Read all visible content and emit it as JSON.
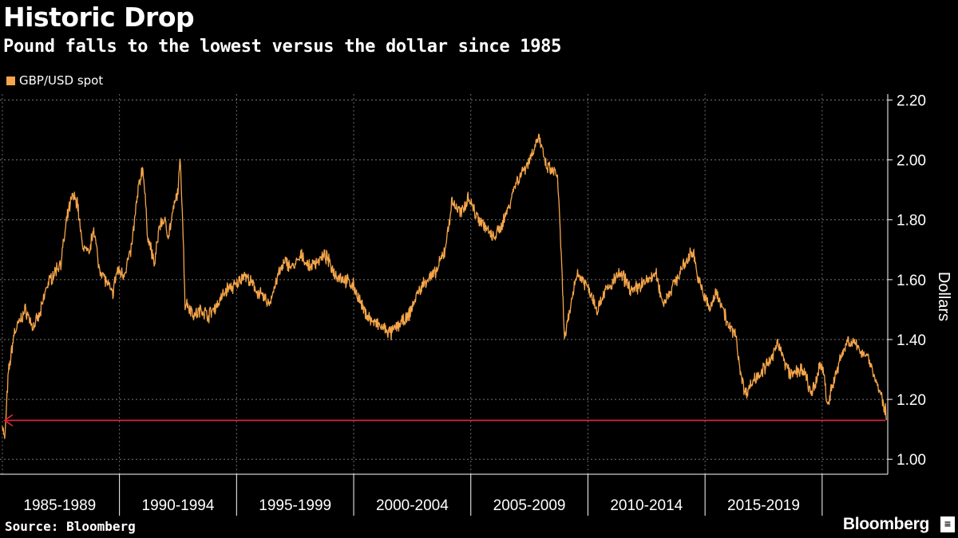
{
  "header": {
    "title": "Historic Drop",
    "subtitle": "Pound falls to the lowest versus the dollar since 1985"
  },
  "footer": {
    "source": "Source: Bloomberg",
    "brand": "Bloomberg"
  },
  "colors": {
    "background": "#000000",
    "series": "#f5a54a",
    "arrow": "#e8253a",
    "grid": "#777777"
  },
  "chart_data": {
    "type": "line",
    "title": "Historic Drop",
    "subtitle": "Pound falls to the lowest versus the dollar since 1985",
    "ylabel": "Dollars",
    "ylim": [
      0.95,
      2.22
    ],
    "yticks": [
      1.0,
      1.2,
      1.4,
      1.6,
      1.8,
      2.0,
      2.2
    ],
    "ytick_labels": [
      "1.00",
      "1.20",
      "1.40",
      "1.60",
      "1.80",
      "2.00",
      "2.20"
    ],
    "xlim": [
      1984.9,
      2022.8
    ],
    "x_categories": [
      "1985-1989",
      "1990-1994",
      "1995-1999",
      "2000-2004",
      "2005-2009",
      "2010-2014",
      "2015-2019"
    ],
    "x_boundaries": [
      1990,
      1995,
      2000,
      2005,
      2010,
      2015,
      2020
    ],
    "grid": true,
    "legend_position": "top-left",
    "series": [
      {
        "name": "GBP/USD spot",
        "x": [
          1985.0,
          1985.1,
          1985.25,
          1985.5,
          1985.8,
          1986.0,
          1986.3,
          1986.6,
          1986.9,
          1987.2,
          1987.5,
          1987.8,
          1988.0,
          1988.2,
          1988.4,
          1988.7,
          1988.9,
          1989.1,
          1989.4,
          1989.7,
          1989.9,
          1990.2,
          1990.5,
          1990.8,
          1991.0,
          1991.2,
          1991.5,
          1991.7,
          1991.9,
          1992.1,
          1992.3,
          1992.5,
          1992.6,
          1992.7,
          1992.8,
          1992.9,
          1993.2,
          1993.5,
          1993.8,
          1994.2,
          1994.6,
          1995.0,
          1995.3,
          1995.7,
          1996.0,
          1996.4,
          1996.8,
          1997.1,
          1997.4,
          1997.8,
          1998.1,
          1998.4,
          1998.8,
          1999.2,
          1999.6,
          2000.0,
          2000.4,
          2000.8,
          2001.2,
          2001.6,
          2001.9,
          2002.3,
          2002.7,
          2003.1,
          2003.5,
          2003.9,
          2004.2,
          2004.6,
          2004.9,
          2005.2,
          2005.6,
          2005.9,
          2006.2,
          2006.6,
          2006.9,
          2007.2,
          2007.5,
          2007.9,
          2008.2,
          2008.5,
          2008.7,
          2008.85,
          2009.0,
          2009.2,
          2009.5,
          2009.8,
          2010.1,
          2010.4,
          2010.7,
          2011.0,
          2011.3,
          2011.6,
          2011.9,
          2012.2,
          2012.6,
          2012.9,
          2013.2,
          2013.5,
          2013.9,
          2014.2,
          2014.5,
          2014.7,
          2014.9,
          2015.2,
          2015.5,
          2015.8,
          2016.0,
          2016.3,
          2016.5,
          2016.7,
          2016.9,
          2017.2,
          2017.5,
          2017.9,
          2018.1,
          2018.4,
          2018.7,
          2019.0,
          2019.3,
          2019.5,
          2019.7,
          2019.9,
          2020.1,
          2020.2,
          2020.5,
          2020.8,
          2021.1,
          2021.4,
          2021.7,
          2022.0,
          2022.2,
          2022.4,
          2022.55,
          2022.7,
          2022.74
        ],
        "values": [
          1.12,
          1.06,
          1.28,
          1.42,
          1.47,
          1.5,
          1.44,
          1.48,
          1.58,
          1.62,
          1.66,
          1.82,
          1.88,
          1.86,
          1.72,
          1.68,
          1.78,
          1.65,
          1.6,
          1.55,
          1.63,
          1.62,
          1.7,
          1.9,
          1.98,
          1.75,
          1.65,
          1.78,
          1.8,
          1.75,
          1.83,
          1.9,
          2.0,
          1.8,
          1.52,
          1.52,
          1.48,
          1.5,
          1.48,
          1.52,
          1.57,
          1.58,
          1.62,
          1.58,
          1.55,
          1.52,
          1.62,
          1.66,
          1.64,
          1.68,
          1.64,
          1.66,
          1.68,
          1.62,
          1.6,
          1.58,
          1.5,
          1.46,
          1.44,
          1.42,
          1.45,
          1.47,
          1.55,
          1.6,
          1.62,
          1.7,
          1.86,
          1.82,
          1.88,
          1.82,
          1.78,
          1.74,
          1.76,
          1.84,
          1.92,
          1.96,
          2.0,
          2.08,
          1.98,
          1.96,
          1.95,
          1.7,
          1.4,
          1.48,
          1.62,
          1.6,
          1.56,
          1.5,
          1.56,
          1.58,
          1.62,
          1.6,
          1.56,
          1.58,
          1.6,
          1.62,
          1.52,
          1.56,
          1.62,
          1.66,
          1.7,
          1.6,
          1.56,
          1.5,
          1.56,
          1.5,
          1.44,
          1.42,
          1.3,
          1.22,
          1.24,
          1.28,
          1.3,
          1.34,
          1.4,
          1.32,
          1.28,
          1.3,
          1.28,
          1.22,
          1.24,
          1.32,
          1.28,
          1.18,
          1.26,
          1.34,
          1.4,
          1.38,
          1.36,
          1.34,
          1.28,
          1.24,
          1.2,
          1.16,
          1.14
        ]
      }
    ],
    "annotations": [
      {
        "type": "arrow",
        "from_x": 2022.7,
        "to_x": 1985.1,
        "y": 1.13,
        "color": "#e8253a"
      }
    ]
  }
}
